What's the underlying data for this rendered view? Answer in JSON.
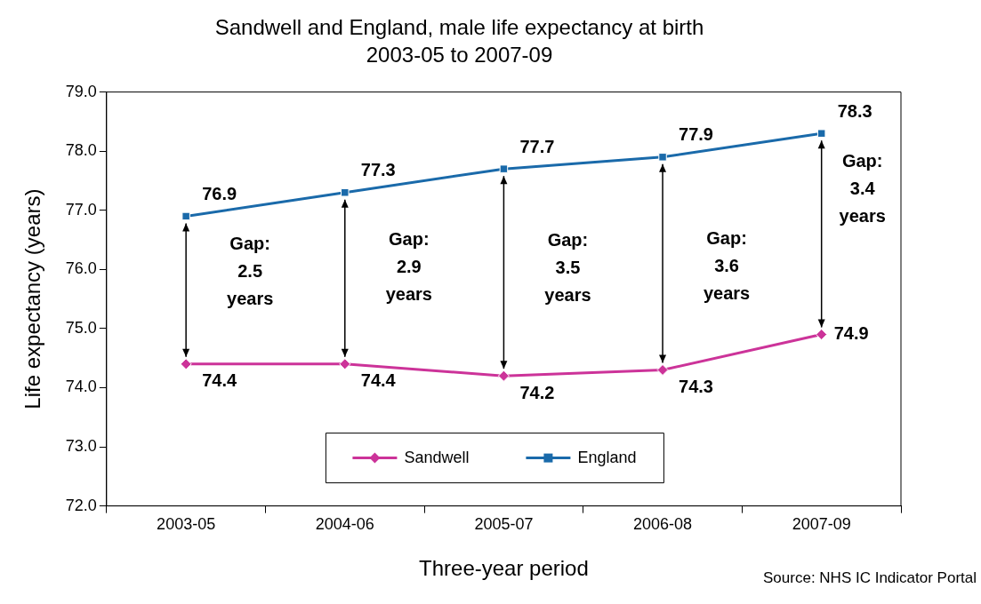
{
  "chart_data": {
    "type": "line",
    "title": "Sandwell and England, male life expectancy at birth",
    "subtitle": "2003-05 to 2007-09",
    "xlabel": "Three-year period",
    "ylabel": "Life expectancy (years)",
    "categories": [
      "2003-05",
      "2004-06",
      "2005-07",
      "2006-08",
      "2007-09"
    ],
    "series": [
      {
        "name": "Sandwell",
        "color": "#cc3399",
        "marker": "diamond",
        "values": [
          74.4,
          74.4,
          74.2,
          74.3,
          74.9
        ]
      },
      {
        "name": "England",
        "color": "#1a6aaa",
        "marker": "square",
        "values": [
          76.9,
          77.3,
          77.7,
          77.9,
          78.3
        ]
      }
    ],
    "ylim": [
      72,
      79
    ],
    "yticks": [
      {
        "value": 72,
        "label": "72.0"
      },
      {
        "value": 73,
        "label": "73.0"
      },
      {
        "value": 74,
        "label": "74.0"
      },
      {
        "value": 75,
        "label": "75.0"
      },
      {
        "value": 76,
        "label": "76.0"
      },
      {
        "value": 77,
        "label": "77.0"
      },
      {
        "value": 78,
        "label": "78.0"
      },
      {
        "value": 79,
        "label": "79.0"
      }
    ],
    "grid": false,
    "legend": "bottom",
    "data_labels": true,
    "annotations": [
      "Gap: 2.5 years",
      "Gap: 2.9 years",
      "Gap: 3.5 years",
      "Gap: 3.6 years",
      "Gap: 3.4 years",
      "Source: NHS IC Indicator Portal"
    ]
  }
}
